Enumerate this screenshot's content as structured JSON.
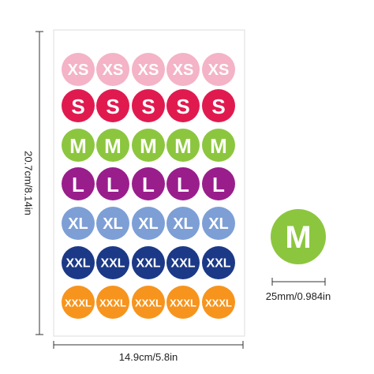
{
  "rows": [
    {
      "label": "XS",
      "color": "#f4b3c6"
    },
    {
      "label": "S",
      "color": "#e01a4f"
    },
    {
      "label": "M",
      "color": "#8cc63f"
    },
    {
      "label": "L",
      "color": "#991e8c"
    },
    {
      "label": "XL",
      "color": "#7d9fd6"
    },
    {
      "label": "XXL",
      "color": "#1b3987"
    },
    {
      "label": "XXXL",
      "color": "#f7941d"
    }
  ],
  "sample": {
    "label": "M",
    "color": "#8cc63f"
  },
  "height_label": "20.7cm/8.14in",
  "width_label": "14.9cm/5.8in",
  "sample_size_label": "25mm/0.984in"
}
